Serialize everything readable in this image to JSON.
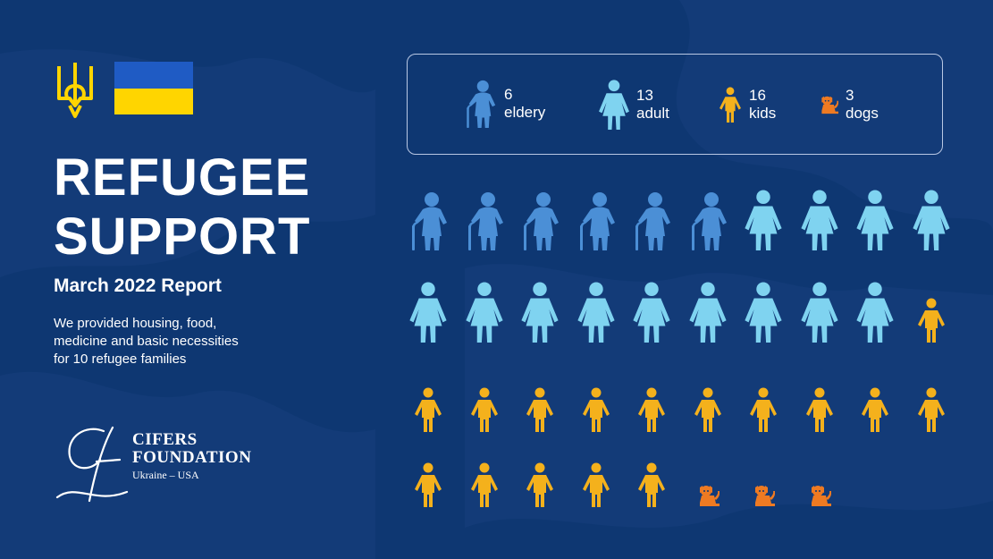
{
  "header": {
    "title_line1": "REFUGEE",
    "title_line2": "SUPPORT",
    "subtitle": "March 2022 Report",
    "description_line1": "We provided housing, food,",
    "description_line2": "medicine and basic necessities",
    "description_line3": "for 10 refugee families"
  },
  "logo": {
    "name_line1": "CIFERS",
    "name_line2": "FOUNDATION",
    "tagline": "Ukraine – USA"
  },
  "legend": [
    {
      "count": "6",
      "label": "eldery",
      "icon": "elderly-icon"
    },
    {
      "count": "13",
      "label": "adult",
      "icon": "adult-icon"
    },
    {
      "count": "16",
      "label": "kids",
      "icon": "kid-icon"
    },
    {
      "count": "3",
      "label": "dogs",
      "icon": "dog-icon"
    }
  ],
  "grid": {
    "rows": [
      [
        "elderly",
        "elderly",
        "elderly",
        "elderly",
        "elderly",
        "elderly",
        "adult",
        "adult",
        "adult",
        "adult"
      ],
      [
        "adult",
        "adult",
        "adult",
        "adult",
        "adult",
        "adult",
        "adult",
        "adult",
        "adult",
        "kid"
      ],
      [
        "kid",
        "kid",
        "kid",
        "kid",
        "kid",
        "kid",
        "kid",
        "kid",
        "kid",
        "kid"
      ],
      [
        "kid",
        "kid",
        "kid",
        "kid",
        "kid",
        "dog",
        "dog",
        "dog"
      ]
    ]
  },
  "colors": {
    "background": "#0e3772",
    "elderly": "#4b8fd6",
    "adult": "#7fd3f0",
    "kid": "#f4b11c",
    "dog": "#ee7a22",
    "flag_blue": "#1f5bc4",
    "flag_yellow": "#ffd500"
  }
}
